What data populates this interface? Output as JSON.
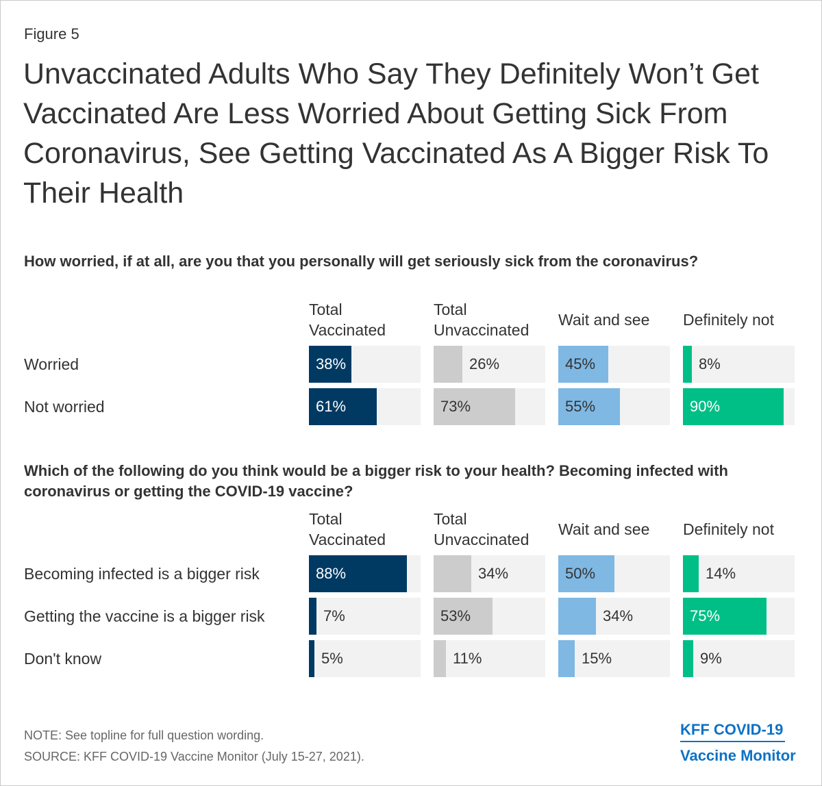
{
  "figure_label": "Figure 5",
  "title": "Unvaccinated Adults Who Say They Definitely Won’t Get Vaccinated Are Less Worried About Getting Sick From Coronavirus, See Getting Vaccinated As A Bigger Risk To Their Health",
  "notes": {
    "note": "NOTE: See topline for full question wording.",
    "source": "SOURCE: KFF COVID-19 Vaccine Monitor (July 15-27, 2021)."
  },
  "logo": {
    "line1": "KFF COVID-19",
    "line2": "Vaccine Monitor"
  },
  "colors": {
    "track": "#f2f2f2",
    "Total Vaccinated": "#003a63",
    "Total Unvaccinated": "#cccccc",
    "Wait and see": "#7fb8e3",
    "Definitely not": "#00bf86"
  },
  "chart_data": [
    {
      "type": "bar",
      "orientation": "horizontal",
      "panels": true,
      "title": "How worried, if at all, are you that you personally will get seriously sick from the coronavirus?",
      "xlim": [
        0,
        100
      ],
      "unit": "%",
      "categories": [
        "Worried",
        "Not worried"
      ],
      "series": [
        {
          "name": "Total Vaccinated",
          "head": [
            "Total",
            "Vaccinated"
          ],
          "values": [
            38,
            61
          ]
        },
        {
          "name": "Total Unvaccinated",
          "head": [
            "Total",
            "Unvaccinated"
          ],
          "values": [
            26,
            73
          ]
        },
        {
          "name": "Wait and see",
          "head": [
            "Wait and see"
          ],
          "values": [
            45,
            55
          ]
        },
        {
          "name": "Definitely not",
          "head": [
            "Definitely not"
          ],
          "values": [
            8,
            90
          ]
        }
      ],
      "labels": [
        [
          "38%",
          "61%"
        ],
        [
          "26%",
          "73%"
        ],
        [
          "45%",
          "55%"
        ],
        [
          "8%",
          "90%"
        ]
      ]
    },
    {
      "type": "bar",
      "orientation": "horizontal",
      "panels": true,
      "title": "Which of the following do you think would be a bigger risk to your health? Becoming infected with coronavirus or getting the COVID-19 vaccine?",
      "xlim": [
        0,
        100
      ],
      "unit": "%",
      "categories": [
        "Becoming infected is a bigger risk",
        "Getting the vaccine is a bigger risk",
        "Don't know"
      ],
      "series": [
        {
          "name": "Total Vaccinated",
          "head": [
            "Total",
            "Vaccinated"
          ],
          "values": [
            88,
            7,
            5
          ]
        },
        {
          "name": "Total Unvaccinated",
          "head": [
            "Total",
            "Unvaccinated"
          ],
          "values": [
            34,
            53,
            11
          ]
        },
        {
          "name": "Wait and see",
          "head": [
            "Wait and see"
          ],
          "values": [
            50,
            34,
            15
          ]
        },
        {
          "name": "Definitely not",
          "head": [
            "Definitely not"
          ],
          "values": [
            14,
            75,
            9
          ]
        }
      ],
      "labels": [
        [
          "88%",
          "7%",
          "5%"
        ],
        [
          "34%",
          "53%",
          "11%"
        ],
        [
          "50%",
          "34%",
          "15%"
        ],
        [
          "14%",
          "75%",
          "9%"
        ]
      ]
    }
  ]
}
